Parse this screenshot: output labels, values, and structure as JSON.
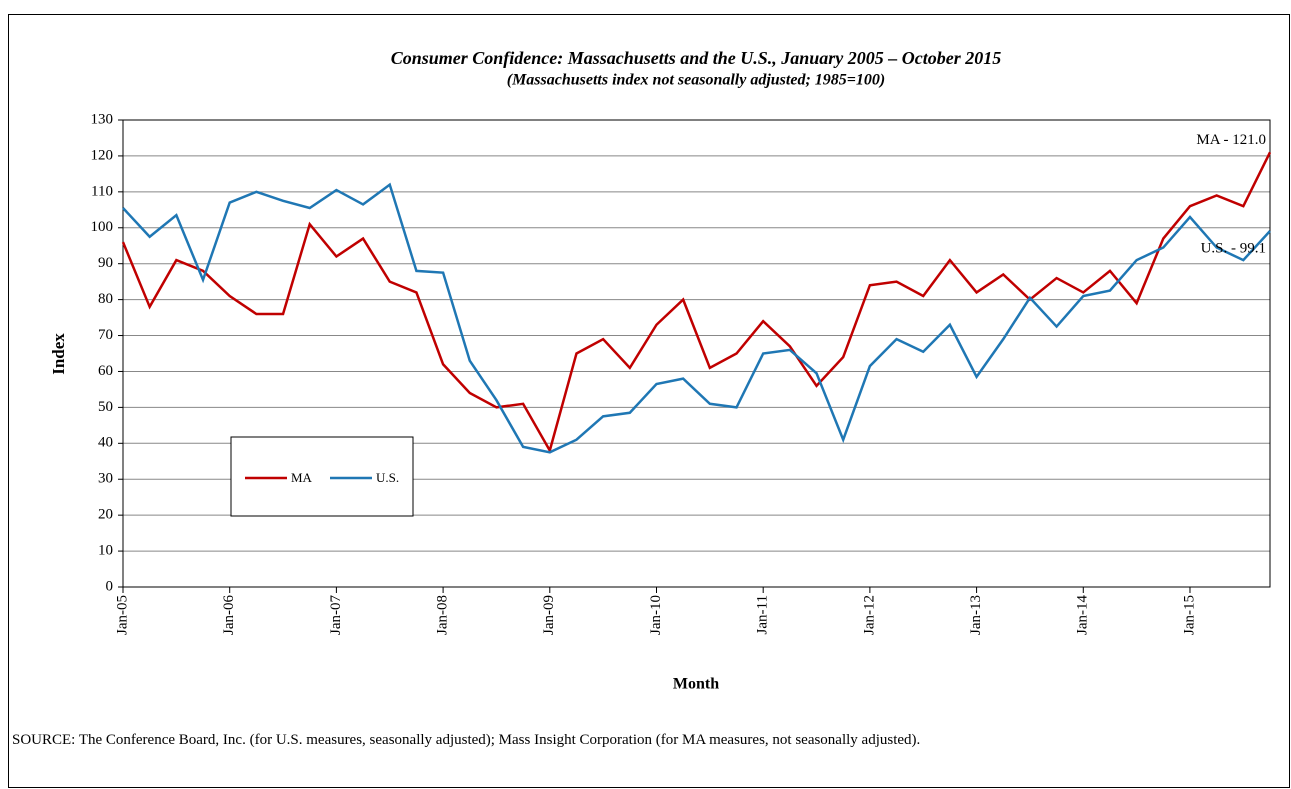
{
  "chart_data": {
    "type": "line",
    "title": "Consumer Confidence: Massachusetts and the U.S., January 2005 – October 2015",
    "subtitle": "(Massachusetts index not seasonally adjusted; 1985=100)",
    "x_label": "Month",
    "y_label": "Index",
    "categories": [
      "Jan-05",
      null,
      null,
      null,
      "Jan-06",
      null,
      null,
      null,
      "Jan-07",
      null,
      null,
      null,
      "Jan-08",
      null,
      null,
      null,
      "Jan-09",
      null,
      null,
      null,
      "Jan-10",
      null,
      null,
      null,
      "Jan-11",
      null,
      null,
      null,
      "Jan-12",
      null,
      null,
      null,
      "Jan-13",
      null,
      null,
      null,
      "Jan-14",
      null,
      null,
      null,
      "Jan-15",
      null,
      null,
      null
    ],
    "series": [
      {
        "name": "MA",
        "color": "#c00000",
        "values": [
          96,
          78,
          91,
          88,
          81,
          76,
          76,
          101,
          92,
          97,
          85,
          82,
          62,
          54,
          50,
          51,
          38,
          65,
          69,
          61,
          73,
          80,
          61,
          65,
          74,
          67,
          56,
          64,
          84,
          85,
          81,
          91,
          82,
          87,
          80,
          86,
          82,
          88,
          79,
          97,
          106,
          109,
          106,
          121.0
        ]
      },
      {
        "name": "U.S.",
        "color": "#1f77b4",
        "values": [
          105.5,
          97.5,
          103.5,
          85.5,
          107,
          110,
          107.5,
          105.5,
          110.5,
          106.5,
          112,
          88,
          87.5,
          63,
          52,
          39,
          37.5,
          41,
          47.5,
          48.5,
          56.5,
          58,
          51,
          50,
          65,
          66,
          59.5,
          41,
          61.5,
          69,
          65.5,
          73,
          58.5,
          69,
          80.5,
          72.5,
          81,
          82.5,
          91,
          94.5,
          103,
          94.5,
          91,
          99.1
        ]
      }
    ],
    "annotations": [
      "MA - 121.0",
      "U.S. - 99.1"
    ],
    "ylim": [
      0,
      130
    ],
    "yticks": [
      0,
      10,
      20,
      30,
      40,
      50,
      60,
      70,
      80,
      90,
      100,
      110,
      120,
      130
    ],
    "grid": true,
    "source": "SOURCE: The Conference Board, Inc. (for U.S. measures, seasonally adjusted); Mass Insight Corporation (for MA measures, not seasonally adjusted)."
  }
}
